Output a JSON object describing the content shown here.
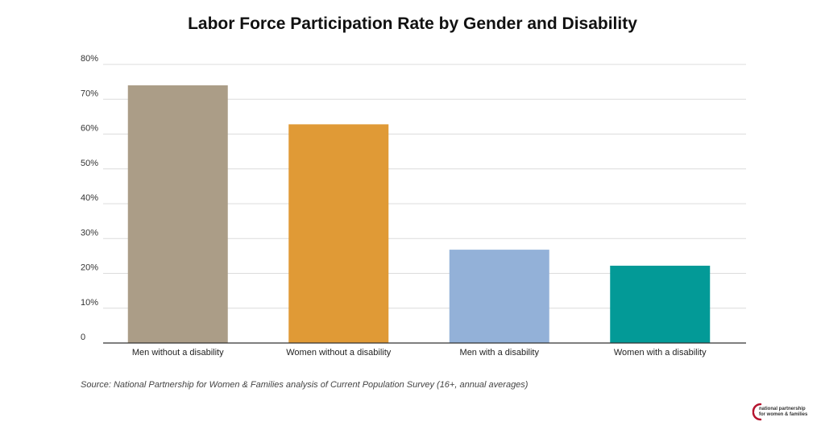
{
  "chart_data": {
    "type": "bar",
    "title": "Labor Force Participation Rate by Gender and Disability",
    "categories": [
      "Men without a disability",
      "Women without a disability",
      "Men with a disability",
      "Women with a disability"
    ],
    "values": [
      74,
      62.8,
      26.8,
      22.2
    ],
    "colors": [
      "#ab9d87",
      "#e09a36",
      "#93b1d8",
      "#039a97"
    ],
    "ylim": [
      0,
      80
    ],
    "yticks": [
      0,
      10,
      20,
      30,
      40,
      50,
      60,
      70,
      80
    ],
    "ytick_labels": [
      "0",
      "10%",
      "20%",
      "30%",
      "40%",
      "50%",
      "60%",
      "70%",
      "80%"
    ],
    "xlabel": "",
    "ylabel": "",
    "grid": true
  },
  "source": "Source: National Partnership for Women & Families analysis of Current Population Survey (16+, annual averages)",
  "logo": {
    "line1": "national partnership",
    "line2": "for women & families",
    "accent_color": "#b5132e"
  }
}
